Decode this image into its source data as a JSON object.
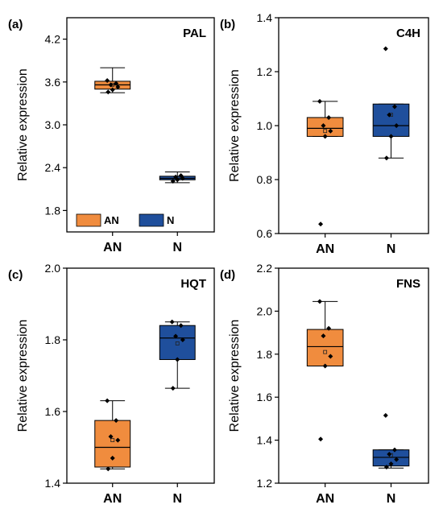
{
  "colors": {
    "AN": "#f08c3e",
    "N": "#1f4f9c",
    "axis": "#000000"
  },
  "legend": {
    "entries": [
      {
        "label": "AN",
        "color": "#f08c3e"
      },
      {
        "label": "N",
        "color": "#1f4f9c"
      }
    ],
    "placement": "bottom-left of panel (a)"
  },
  "chart_data": [
    {
      "type": "box",
      "panel": "(a)",
      "gene": "PAL",
      "ylabel": "Relative expression",
      "ylim": [
        1.5,
        4.5
      ],
      "yticks": [
        "1.8",
        "2.4",
        "3.0",
        "3.6",
        "4.2"
      ],
      "categories": [
        "AN",
        "N"
      ],
      "boxes": [
        {
          "name": "AN",
          "min": 3.45,
          "q1": 3.5,
          "median": 3.56,
          "q3": 3.61,
          "max": 3.8,
          "mean": 3.56,
          "points": [
            3.46,
            3.49,
            3.53,
            3.56,
            3.58,
            3.62
          ]
        },
        {
          "name": "N",
          "min": 2.19,
          "q1": 2.23,
          "median": 2.25,
          "q3": 2.28,
          "max": 2.34,
          "mean": 2.26,
          "points": [
            2.21,
            2.23,
            2.25,
            2.27,
            2.29
          ]
        }
      ]
    },
    {
      "type": "box",
      "panel": "(b)",
      "gene": "C4H",
      "ylabel": "Relative expression",
      "ylim": [
        0.6,
        1.4
      ],
      "yticks": [
        "0.6",
        "0.8",
        "1.0",
        "1.2",
        "1.4"
      ],
      "categories": [
        "AN",
        "N"
      ],
      "boxes": [
        {
          "name": "AN",
          "min": 0.96,
          "q1": 0.96,
          "median": 0.99,
          "q3": 1.03,
          "max": 1.09,
          "mean": 0.98,
          "points": [
            0.635,
            0.96,
            0.98,
            1.0,
            1.03,
            1.09
          ]
        },
        {
          "name": "N",
          "min": 0.88,
          "q1": 0.96,
          "median": 1.0,
          "q3": 1.08,
          "max": 1.08,
          "mean": 1.04,
          "points": [
            0.88,
            0.96,
            1.0,
            1.04,
            1.07,
            1.285
          ]
        }
      ]
    },
    {
      "type": "box",
      "panel": "(c)",
      "gene": "HQT",
      "ylabel": "Relative expression",
      "ylim": [
        1.4,
        2.0
      ],
      "yticks": [
        "1.4",
        "1.6",
        "1.8",
        "2.0"
      ],
      "categories": [
        "AN",
        "N"
      ],
      "boxes": [
        {
          "name": "AN",
          "min": 1.44,
          "q1": 1.445,
          "median": 1.5,
          "q3": 1.575,
          "max": 1.63,
          "mean": 1.52,
          "points": [
            1.44,
            1.47,
            1.52,
            1.53,
            1.575,
            1.63
          ]
        },
        {
          "name": "N",
          "min": 1.665,
          "q1": 1.745,
          "median": 1.805,
          "q3": 1.84,
          "max": 1.85,
          "mean": 1.79,
          "points": [
            1.665,
            1.745,
            1.8,
            1.81,
            1.84,
            1.85
          ]
        }
      ]
    },
    {
      "type": "box",
      "panel": "(d)",
      "gene": "FNS",
      "ylabel": "Relative expression",
      "ylim": [
        1.2,
        2.2
      ],
      "yticks": [
        "1.2",
        "1.4",
        "1.6",
        "1.8",
        "2.0",
        "2.2"
      ],
      "categories": [
        "AN",
        "N"
      ],
      "boxes": [
        {
          "name": "AN",
          "min": 1.745,
          "q1": 1.745,
          "median": 1.835,
          "q3": 1.915,
          "max": 2.045,
          "mean": 1.81,
          "points": [
            1.405,
            1.745,
            1.79,
            1.885,
            1.92,
            2.045
          ]
        },
        {
          "name": "N",
          "min": 1.27,
          "q1": 1.28,
          "median": 1.32,
          "q3": 1.355,
          "max": 1.355,
          "mean": 1.33,
          "points": [
            1.275,
            1.29,
            1.31,
            1.335,
            1.355,
            1.515
          ]
        }
      ]
    }
  ]
}
